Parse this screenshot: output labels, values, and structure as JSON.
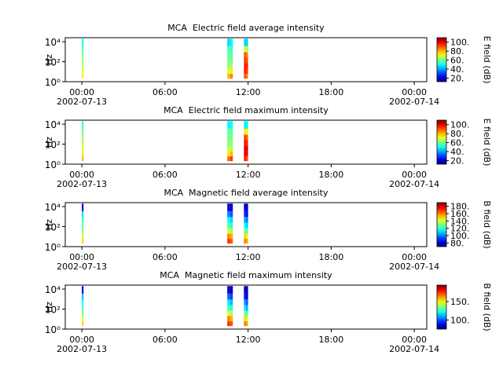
{
  "chart_data": [
    {
      "type": "spectrogram",
      "title": "MCA  Electric field average intensity",
      "ylabel": "Hz",
      "colorbar_label": "E field (dB)",
      "colormap": "jet",
      "yscale": "log",
      "xlim": [
        -1.2,
        24.9
      ],
      "ylim": [
        1,
        25000
      ],
      "xticks": [
        {
          "value": 0,
          "label": "00:00\n2002-07-13"
        },
        {
          "value": 6,
          "label": "06:00"
        },
        {
          "value": 12,
          "label": "12:00"
        },
        {
          "value": 18,
          "label": "18:00"
        },
        {
          "value": 24,
          "label": "00:00\n2002-07-14"
        }
      ],
      "yticks": [
        {
          "value": 1,
          "label": "10⁰"
        },
        {
          "value": 100,
          "label": "10²"
        },
        {
          "value": 10000,
          "label": "10⁴"
        }
      ],
      "zlim": [
        12,
        110
      ],
      "zticks": [
        {
          "value": 20,
          "label": "20."
        },
        {
          "value": 40,
          "label": "40."
        },
        {
          "value": 60,
          "label": "60."
        },
        {
          "value": 80,
          "label": "80."
        },
        {
          "value": 100,
          "label": "100."
        }
      ],
      "xbins": [
        0,
        0.12,
        10.5,
        10.7,
        10.9,
        11.7,
        11.85,
        12.0
      ],
      "ybins": [
        2,
        6,
        20,
        70,
        250,
        900,
        3500,
        20000
      ],
      "z": [
        [
          75,
          70,
          65,
          62,
          60,
          55,
          50
        ],
        null,
        [
          80,
          70,
          62,
          60,
          58,
          55,
          45
        ],
        [
          85,
          75,
          65,
          60,
          58,
          55,
          48
        ],
        null,
        [
          90,
          95,
          95,
          92,
          90,
          70,
          45
        ],
        [
          85,
          92,
          95,
          90,
          85,
          65,
          45
        ]
      ]
    },
    {
      "type": "spectrogram",
      "title": "MCA  Electric field maximum intensity",
      "ylabel": "Hz",
      "colorbar_label": "E field (dB)",
      "colormap": "jet",
      "yscale": "log",
      "xlim": [
        -1.2,
        24.9
      ],
      "ylim": [
        1,
        25000
      ],
      "xticks": [
        {
          "value": 0,
          "label": "00:00\n2002-07-13"
        },
        {
          "value": 6,
          "label": "06:00"
        },
        {
          "value": 12,
          "label": "12:00"
        },
        {
          "value": 18,
          "label": "18:00"
        },
        {
          "value": 24,
          "label": "00:00\n2002-07-14"
        }
      ],
      "yticks": [
        {
          "value": 1,
          "label": "10⁰"
        },
        {
          "value": 100,
          "label": "10²"
        },
        {
          "value": 10000,
          "label": "10⁴"
        }
      ],
      "zlim": [
        12,
        110
      ],
      "zticks": [
        {
          "value": 20,
          "label": "20."
        },
        {
          "value": 40,
          "label": "40."
        },
        {
          "value": 60,
          "label": "60."
        },
        {
          "value": 80,
          "label": "80."
        },
        {
          "value": 100,
          "label": "100."
        }
      ],
      "xbins": [
        0,
        0.12,
        10.5,
        10.7,
        10.9,
        11.7,
        11.85,
        12.0
      ],
      "ybins": [
        2,
        6,
        20,
        70,
        250,
        900,
        3500,
        20000
      ],
      "z": [
        [
          80,
          75,
          70,
          66,
          64,
          60,
          52
        ],
        null,
        [
          88,
          75,
          66,
          62,
          60,
          58,
          48
        ],
        [
          92,
          80,
          68,
          62,
          60,
          58,
          50
        ],
        null,
        [
          95,
          100,
          100,
          96,
          92,
          75,
          48
        ],
        [
          90,
          98,
          100,
          94,
          88,
          70,
          48
        ]
      ]
    },
    {
      "type": "spectrogram",
      "title": "MCA  Magnetic field average intensity",
      "ylabel": "Hz",
      "colorbar_label": "B field (dB)",
      "colormap": "jet",
      "yscale": "log",
      "xlim": [
        -1.2,
        24.9
      ],
      "ylim": [
        1,
        25000
      ],
      "xticks": [
        {
          "value": 0,
          "label": "00:00\n2002-07-13"
        },
        {
          "value": 6,
          "label": "06:00"
        },
        {
          "value": 12,
          "label": "12:00"
        },
        {
          "value": 18,
          "label": "18:00"
        },
        {
          "value": 24,
          "label": "00:00\n2002-07-14"
        }
      ],
      "yticks": [
        {
          "value": 1,
          "label": "10⁰"
        },
        {
          "value": 100,
          "label": "10²"
        },
        {
          "value": 10000,
          "label": "10⁴"
        }
      ],
      "zlim": [
        70,
        190
      ],
      "zticks": [
        {
          "value": 80,
          "label": "80."
        },
        {
          "value": 100,
          "label": "100."
        },
        {
          "value": 120,
          "label": "120."
        },
        {
          "value": 140,
          "label": "140."
        },
        {
          "value": 160,
          "label": "160."
        },
        {
          "value": 180,
          "label": "180."
        }
      ],
      "xbins": [
        0,
        0.12,
        10.5,
        10.7,
        10.9,
        11.7,
        11.85,
        12.0
      ],
      "ybins": [
        2,
        6,
        20,
        70,
        250,
        900,
        3500,
        20000
      ],
      "z": [
        [
          150,
          140,
          130,
          125,
          120,
          110,
          80
        ],
        null,
        [
          170,
          160,
          140,
          125,
          115,
          100,
          80
        ],
        [
          165,
          155,
          135,
          120,
          110,
          95,
          80
        ],
        null,
        [
          160,
          150,
          130,
          115,
          105,
          90,
          80
        ],
        [
          155,
          140,
          125,
          110,
          100,
          85,
          80
        ]
      ]
    },
    {
      "type": "spectrogram",
      "title": "MCA  Magnetic field maximum intensity",
      "ylabel": "Hz",
      "colorbar_label": "B field (dB)",
      "colormap": "jet",
      "yscale": "log",
      "xlim": [
        -1.2,
        24.9
      ],
      "ylim": [
        1,
        25000
      ],
      "xticks": [
        {
          "value": 0,
          "label": "00:00\n2002-07-13"
        },
        {
          "value": 6,
          "label": "06:00"
        },
        {
          "value": 12,
          "label": "12:00"
        },
        {
          "value": 18,
          "label": "18:00"
        },
        {
          "value": 24,
          "label": "00:00\n2002-07-14"
        }
      ],
      "yticks": [
        {
          "value": 1,
          "label": "10⁰"
        },
        {
          "value": 100,
          "label": "10²"
        },
        {
          "value": 10000,
          "label": "10⁴"
        }
      ],
      "zlim": [
        75,
        195
      ],
      "zticks": [
        {
          "value": 100,
          "label": "100."
        },
        {
          "value": 150,
          "label": "150."
        }
      ],
      "xbins": [
        0,
        0.12,
        10.5,
        10.7,
        10.9,
        11.7,
        11.85,
        12.0
      ],
      "ybins": [
        2,
        6,
        20,
        70,
        250,
        900,
        3500,
        20000
      ],
      "z": [
        [
          155,
          145,
          135,
          128,
          122,
          112,
          85
        ],
        null,
        [
          175,
          165,
          145,
          128,
          118,
          102,
          82
        ],
        [
          170,
          160,
          140,
          124,
          112,
          98,
          82
        ],
        null,
        [
          165,
          155,
          135,
          118,
          108,
          92,
          82
        ],
        [
          160,
          145,
          128,
          112,
          102,
          88,
          82
        ]
      ]
    }
  ]
}
